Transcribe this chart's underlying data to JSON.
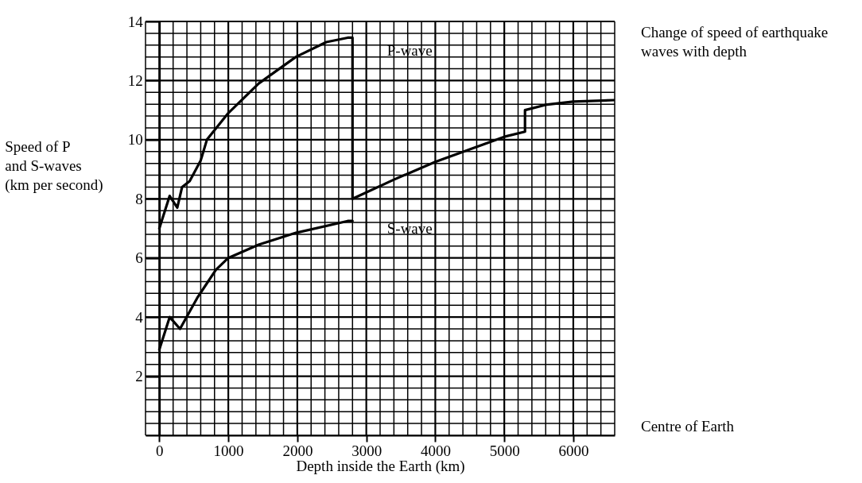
{
  "chart_data": {
    "type": "line",
    "xlabel": "Depth inside the Earth (km)",
    "ylabel": "Speed of P and S-waves (km per second)",
    "annotations": [
      "Change of speed of earthquake waves with depth",
      "Centre of Earth"
    ],
    "series": [
      {
        "name": "P-wave",
        "color": "#000000",
        "x": [
          0,
          150,
          260,
          330,
          440,
          600,
          690,
          1000,
          1440,
          1980,
          2420,
          2730,
          2800,
          2800,
          3400,
          4000,
          5000,
          5300,
          5300,
          5600,
          6000,
          6600
        ],
        "values": [
          7.0,
          8.1,
          7.7,
          8.4,
          8.6,
          9.3,
          10.0,
          10.9,
          11.9,
          12.8,
          13.3,
          13.45,
          13.45,
          8.0,
          8.65,
          9.25,
          10.1,
          10.27,
          11.0,
          11.18,
          11.29,
          11.34
        ]
      },
      {
        "name": "S-wave",
        "color": "#000000",
        "x": [
          0,
          150,
          300,
          550,
          820,
          1000,
          1440,
          1980,
          2730,
          2800
        ],
        "values": [
          2.9,
          4.0,
          3.6,
          4.65,
          5.6,
          6.0,
          6.45,
          6.85,
          7.25,
          7.25
        ]
      }
    ],
    "xlim": [
      -200,
      6600
    ],
    "xticks": [
      {
        "value": -200,
        "label": null
      },
      0,
      {
        "value": 200,
        "label": null
      },
      {
        "value": 400,
        "label": null
      },
      {
        "value": 600,
        "label": null
      },
      {
        "value": 800,
        "label": null
      },
      1000,
      {
        "value": 1200,
        "label": null
      },
      {
        "value": 1400,
        "label": null
      },
      {
        "value": 1600,
        "label": null
      },
      {
        "value": 1800,
        "label": null
      },
      2000,
      {
        "value": 2200,
        "label": null
      },
      {
        "value": 2400,
        "label": null
      },
      {
        "value": 2600,
        "label": null
      },
      {
        "value": 2800,
        "label": null
      },
      3000,
      {
        "value": 3200,
        "label": null
      },
      {
        "value": 3400,
        "label": null
      },
      {
        "value": 3600,
        "label": null
      },
      {
        "value": 3800,
        "label": null
      },
      4000,
      {
        "value": 4200,
        "label": null
      },
      {
        "value": 4400,
        "label": null
      },
      {
        "value": 4600,
        "label": null
      },
      {
        "value": 4800,
        "label": null
      },
      5000,
      {
        "value": 5200,
        "label": null
      },
      {
        "value": 5400,
        "label": null
      },
      {
        "value": 5600,
        "label": null
      },
      {
        "value": 5800,
        "label": null
      },
      6000,
      {
        "value": 6200,
        "label": null
      },
      {
        "value": 6400,
        "label": null
      },
      {
        "value": 6600,
        "label": null
      }
    ],
    "ylim": [
      0,
      14
    ],
    "yticks": [
      {
        "value": 0,
        "label": null
      },
      {
        "value": 0.4,
        "label": null
      },
      {
        "value": 0.8,
        "label": null
      },
      {
        "value": 1.2,
        "label": null
      },
      {
        "value": 1.6,
        "label": null
      },
      2,
      {
        "value": 2.4,
        "label": null
      },
      {
        "value": 2.8,
        "label": null
      },
      {
        "value": 3.2,
        "label": null
      },
      {
        "value": 3.6,
        "label": null
      },
      4,
      {
        "value": 4.4,
        "label": null
      },
      {
        "value": 4.8,
        "label": null
      },
      {
        "value": 5.2,
        "label": null
      },
      {
        "value": 5.6,
        "label": null
      },
      6,
      {
        "value": 6.4,
        "label": null
      },
      {
        "value": 6.8,
        "label": null
      },
      {
        "value": 7.2,
        "label": null
      },
      {
        "value": 7.6,
        "label": null
      },
      8,
      {
        "value": 8.4,
        "label": null
      },
      {
        "value": 8.8,
        "label": null
      },
      {
        "value": 9.2,
        "label": null
      },
      {
        "value": 9.6,
        "label": null
      },
      10,
      {
        "value": 10.4,
        "label": null
      },
      {
        "value": 10.8,
        "label": null
      },
      {
        "value": 11.2,
        "label": null
      },
      {
        "value": 11.6,
        "label": null
      },
      12,
      {
        "value": 12.4,
        "label": null
      },
      {
        "value": 12.8,
        "label": null
      },
      {
        "value": 13.2,
        "label": null
      },
      {
        "value": 13.6,
        "label": null
      },
      14
    ],
    "grid": true,
    "legend": false,
    "marker": "none",
    "line_style": "solid"
  }
}
